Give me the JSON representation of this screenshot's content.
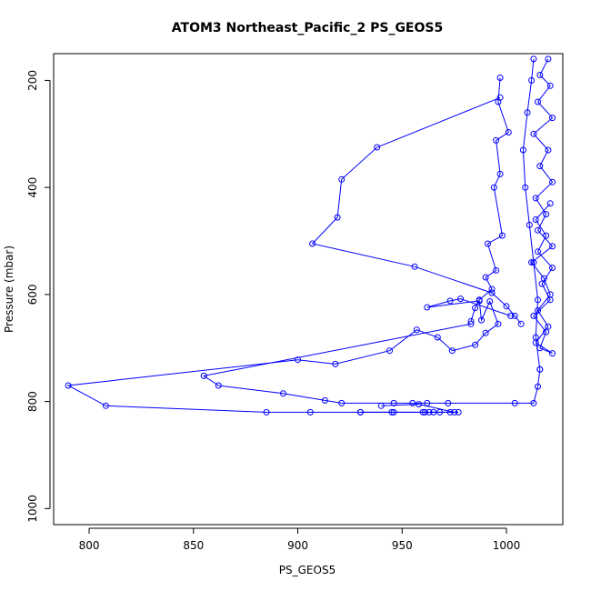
{
  "chart_data": {
    "type": "line",
    "title": "ATOM3 Northeast_Pacific_2 PS_GEOS5",
    "xlabel": "PS_GEOS5",
    "ylabel": "Pressure (mbar)",
    "xlim": [
      783,
      1027
    ],
    "ylim": [
      1030,
      150
    ],
    "y_reversed": true,
    "xticks": [
      800,
      850,
      900,
      950,
      1000
    ],
    "yticks": [
      200,
      400,
      600,
      800,
      1000
    ],
    "grid": false,
    "series_color": "#0000ff",
    "series": [
      {
        "x": [
          1020,
          1016,
          1021,
          1015,
          1022,
          1013,
          1020,
          1016,
          1022,
          1014,
          1019,
          1015,
          1022,
          1012,
          1018,
          1021,
          1015,
          1020,
          1014,
          1022,
          1016,
          1019,
          1013,
          1021,
          1017,
          1022,
          1015,
          1019,
          1014,
          1021
        ],
        "y": [
          160,
          190,
          210,
          240,
          270,
          300,
          330,
          360,
          390,
          420,
          450,
          480,
          510,
          540,
          570,
          600,
          630,
          660,
          690,
          710,
          700,
          670,
          640,
          610,
          580,
          550,
          520,
          490,
          460,
          430
        ]
      },
      {
        "x": [
          997,
          996,
          1001,
          995,
          997,
          994,
          998,
          991,
          995,
          990,
          993,
          987,
          985,
          983
        ],
        "y": [
          195,
          240,
          297,
          312,
          375,
          400,
          490,
          505,
          555,
          568,
          590,
          610,
          625,
          650
        ]
      },
      {
        "x": [
          1013,
          1012,
          1010,
          1008,
          1009,
          1011,
          1013,
          1015,
          1014,
          1016
        ],
        "y": [
          160,
          200,
          260,
          330,
          400,
          470,
          540,
          610,
          680,
          740
        ]
      },
      {
        "x": [
          997,
          938,
          921,
          919,
          907,
          956,
          993,
          1000,
          1004,
          1007
        ],
        "y": [
          232,
          325,
          385,
          456,
          505,
          548,
          597,
          622,
          640,
          655
        ]
      },
      {
        "x": [
          1002,
          978,
          973,
          962,
          987,
          988,
          992,
          996,
          990,
          985,
          974,
          967,
          957,
          944,
          918,
          900,
          790,
          808,
          885,
          906,
          930,
          946,
          963,
          968,
          973,
          977
        ],
        "y": [
          640,
          608,
          612,
          624,
          612,
          648,
          613,
          655,
          672,
          694,
          705,
          680,
          666,
          705,
          730,
          722,
          770,
          808,
          820,
          820,
          820,
          820,
          820,
          820,
          820,
          820
        ]
      },
      {
        "x": [
          983,
          855,
          862,
          893,
          913,
          921,
          946,
          955,
          962,
          972,
          1004,
          1013,
          1015,
          1016
        ],
        "y": [
          655,
          752,
          770,
          785,
          798,
          803,
          803,
          803,
          803,
          803,
          803,
          803,
          772,
          740
        ]
      },
      {
        "x": [
          961,
          930,
          960,
          965,
          945,
          975,
          958,
          940
        ],
        "y": [
          820,
          820,
          820,
          820,
          820,
          820,
          805,
          808
        ]
      }
    ]
  }
}
